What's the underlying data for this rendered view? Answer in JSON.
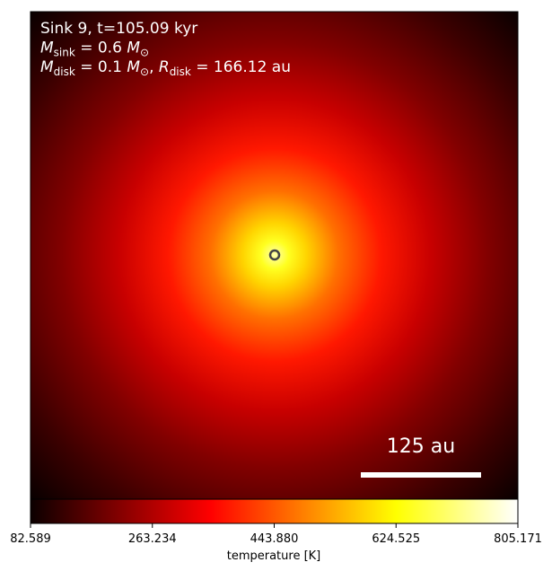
{
  "chart_data": {
    "type": "heatmap",
    "annotations": [
      [
        "Sink 9, t=105.09 kyr"
      ],
      [
        "M",
        "sink",
        " = 0.6 ",
        "M",
        "⊙"
      ],
      [
        "M",
        "disk",
        " = 0.1 ",
        "M",
        "⊙",
        ", ",
        "R",
        "disk",
        " = 166.12 au"
      ]
    ],
    "scale_bar_label": "125 au",
    "colorbar_label": "temperature [K]",
    "clim": [
      82.589,
      805.171
    ],
    "cticks": [
      82.589,
      263.234,
      {
        "value": 443.88,
        "label": "443.880"
      },
      624.525,
      805.171
    ]
  }
}
